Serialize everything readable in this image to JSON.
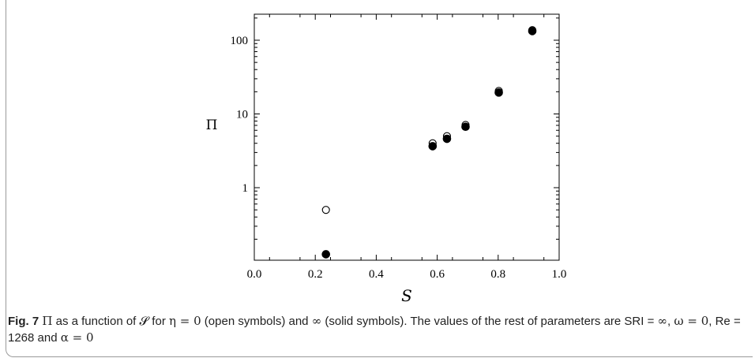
{
  "chart_data": {
    "type": "scatter",
    "xlabel": "S",
    "ylabel": "Π",
    "xlim": [
      0.0,
      1.0
    ],
    "ylim": [
      0.1,
      200
    ],
    "yscale": "log",
    "x_ticks": [
      "0.0",
      "0.2",
      "0.4",
      "0.6",
      "0.8",
      "1.0"
    ],
    "y_ticks": [
      "1",
      "10",
      "100"
    ],
    "grid": false,
    "series": [
      {
        "marker": "open",
        "x": [
          0.235,
          0.585,
          0.632,
          0.693,
          0.802,
          0.912
        ],
        "y": [
          0.5,
          4.0,
          5.0,
          7.1,
          20.5,
          137
        ]
      },
      {
        "marker": "solid",
        "x": [
          0.235,
          0.585,
          0.632,
          0.693,
          0.802,
          0.912
        ],
        "y": [
          0.125,
          3.65,
          4.6,
          6.7,
          19.5,
          133
        ]
      }
    ]
  },
  "caption": {
    "label": "Fig. 7",
    "symbol": "Π",
    "text1": " as a function of ",
    "symbol_s": "𝓢",
    "text2": " for ",
    "eta": "η = 0",
    "text3": " (open symbols) and ",
    "infinity": "∞",
    "text4": " (solid symbols). The values of the rest of parameters are SRI = ",
    "text5": ", ",
    "omega": "ω = 0",
    "text6": ", Re = 1268 and ",
    "alpha": "α = 0"
  }
}
